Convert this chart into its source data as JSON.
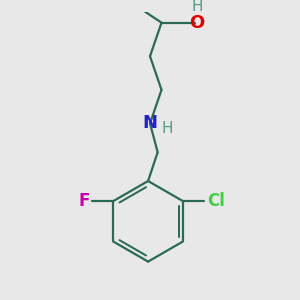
{
  "background_color": "#e8e8e8",
  "bond_color": "#2a6b52",
  "atom_colors": {
    "O": "#e00000",
    "N": "#2222cc",
    "F": "#cc00aa",
    "Cl": "#44cc44",
    "H_oh": "#559988",
    "H_nh": "#2a6b52"
  },
  "bond_width": 1.6,
  "figsize": [
    3.0,
    3.0
  ],
  "dpi": 100
}
